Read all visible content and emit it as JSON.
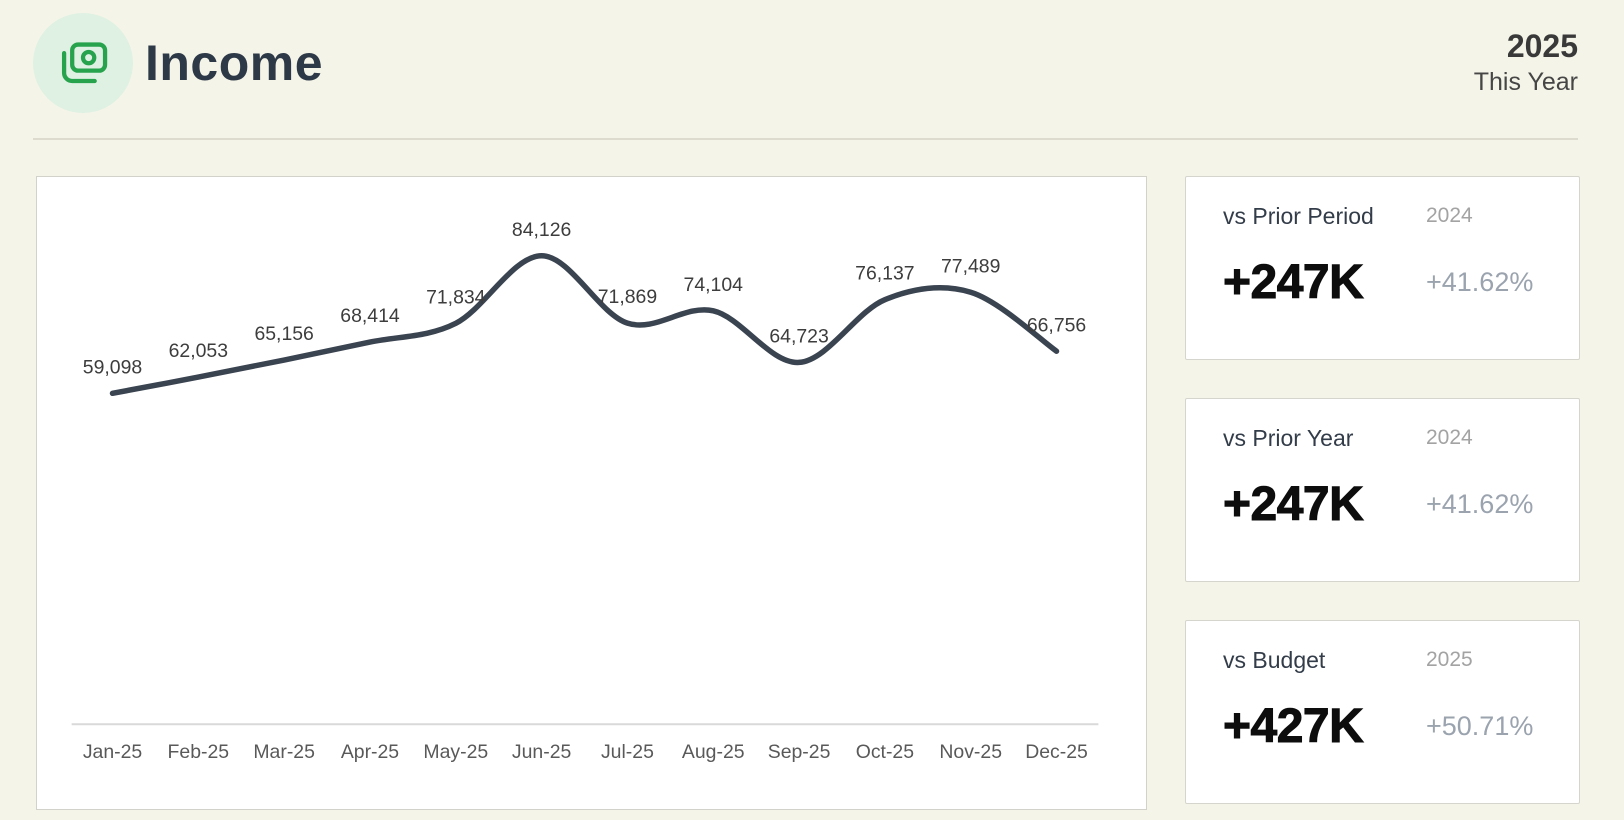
{
  "header": {
    "title": "Income",
    "year": "2025",
    "period_label": "This Year"
  },
  "chart_data": {
    "type": "line",
    "title": "",
    "categories": [
      "Jan-25",
      "Feb-25",
      "Mar-25",
      "Apr-25",
      "May-25",
      "Jun-25",
      "Jul-25",
      "Aug-25",
      "Sep-25",
      "Oct-25",
      "Nov-25",
      "Dec-25"
    ],
    "series": [
      {
        "name": "Income",
        "values": [
          59098,
          62053,
          65156,
          68414,
          71834,
          84126,
          71869,
          74104,
          64723,
          76137,
          77489,
          66756
        ]
      }
    ],
    "data_labels": true,
    "smooth": true,
    "legend": "none",
    "grid": false,
    "x_axis": {
      "visible": true,
      "line_color": "#d9d9d9"
    },
    "y_axis": {
      "visible": false
    },
    "line_color": "#3a4350",
    "label_color": "#3d3d3d",
    "tick_color": "#595959",
    "value_format": "#,##0"
  },
  "cards": [
    {
      "label": "vs Prior Period",
      "compare_year": "2024",
      "delta": "+247K",
      "delta_percent": "+41.62%"
    },
    {
      "label": "vs Prior Year",
      "compare_year": "2024",
      "delta": "+247K",
      "delta_percent": "+41.62%"
    },
    {
      "label": "vs Budget",
      "compare_year": "2025",
      "delta": "+427K",
      "delta_percent": "+50.71%"
    }
  ],
  "colors": {
    "page_bg": "#f5f4e8",
    "accent_green": "#27a34d",
    "accent_green_bg": "#dff1e3",
    "line": "#3a4350",
    "card_border": "#d6d5cd"
  }
}
